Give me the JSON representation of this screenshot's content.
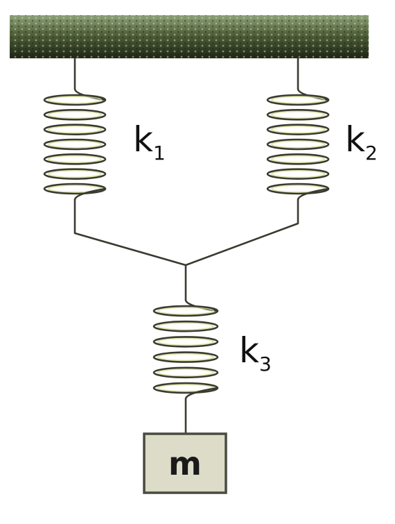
{
  "springs": [
    {
      "symbol": "k",
      "subscript": "1"
    },
    {
      "symbol": "k",
      "subscript": "2"
    },
    {
      "symbol": "k",
      "subscript": "3"
    }
  ],
  "mass": {
    "label": "m"
  },
  "colors": {
    "ceiling": "#2f3a22",
    "ceiling_highlight": "#9fb58a",
    "wire": "#3a3a30",
    "coil_highlight": "#d8df9a",
    "mass_fill": "#dcdcc8",
    "mass_border": "#4a4a40"
  }
}
